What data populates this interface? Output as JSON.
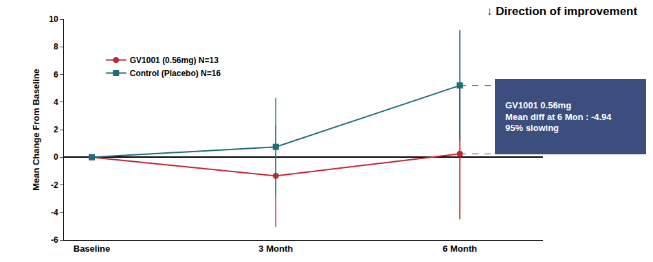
{
  "chart_data": {
    "type": "line",
    "y_label": "Mean Change From Baseline",
    "categories": [
      "Baseline",
      "3 Month",
      "6 Month"
    ],
    "series": [
      {
        "name": "GV1001 (0.56mg) N=13",
        "color": "#c0282d",
        "marker": "circle",
        "line_style": "solid",
        "values": [
          0,
          -1.35,
          0.25
        ],
        "errors": [
          0,
          3.7,
          4.75
        ]
      },
      {
        "name": "Control (Placebo) N=16",
        "color": "#1f6b7a",
        "marker": "square",
        "line_style": "solid",
        "values": [
          0,
          0.75,
          5.2
        ],
        "errors": [
          0,
          3.55,
          4.0
        ]
      }
    ],
    "ylim": [
      -6,
      10
    ],
    "yticks": [
      -6,
      -4,
      -2,
      0,
      2,
      4,
      6,
      8,
      10
    ],
    "grid": false,
    "legend": "upper left",
    "annotations": [
      "↓ Direction of improvement",
      "GV1001 0.56mg\nMean diff at 6 Mon : -4.94\n95% slowing"
    ]
  }
}
